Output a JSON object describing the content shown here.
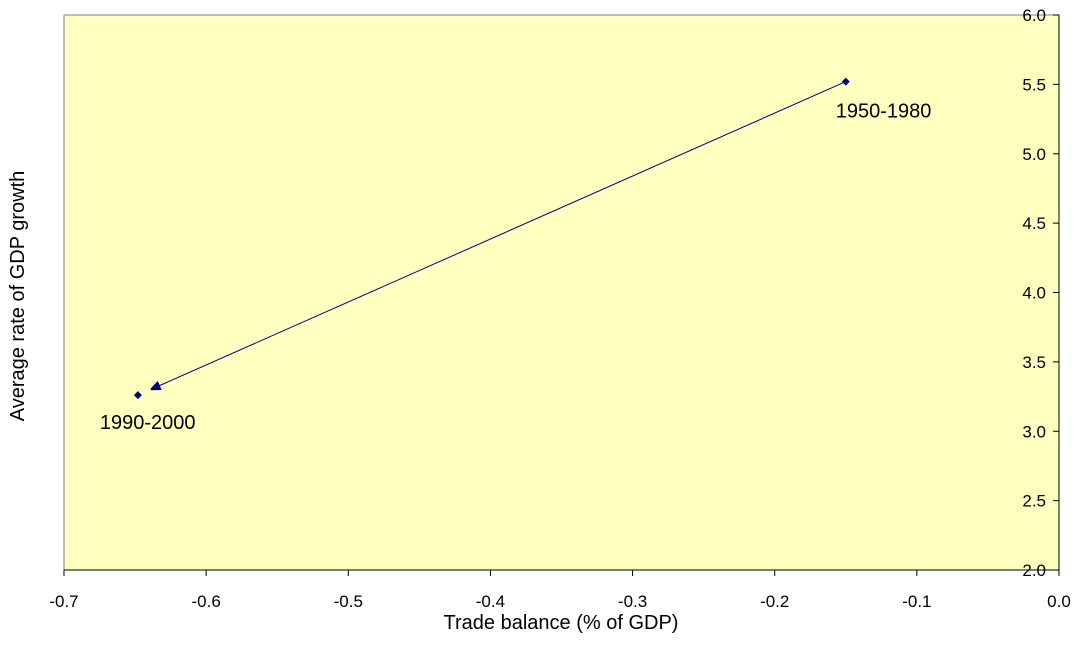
{
  "chart_data": {
    "type": "scatter",
    "title": "",
    "xlabel": "Trade balance (% of GDP)",
    "ylabel": "Average rate of GDP growth",
    "xlim": [
      -0.7,
      0.0
    ],
    "ylim": [
      2.0,
      6.0
    ],
    "x_ticks": [
      "-0.7",
      "-0.6",
      "-0.5",
      "-0.4",
      "-0.3",
      "-0.2",
      "-0.1",
      "0.0"
    ],
    "y_ticks": [
      "2.0",
      "2.5",
      "3.0",
      "3.5",
      "4.0",
      "4.5",
      "5.0",
      "5.5",
      "6.0"
    ],
    "y_axis_position": "right",
    "grid": false,
    "legend": "none",
    "connector": "arrow from 1950-1980 to 1990-2000",
    "points": [
      {
        "label": "1950-1980",
        "x": -0.15,
        "y": 5.52
      },
      {
        "label": "1990-2000",
        "x": -0.648,
        "y": 3.26
      }
    ],
    "colors": {
      "plot_background": "#FFFFC0",
      "marker": "#000080",
      "line": "#000080",
      "axis": "#000000"
    }
  }
}
